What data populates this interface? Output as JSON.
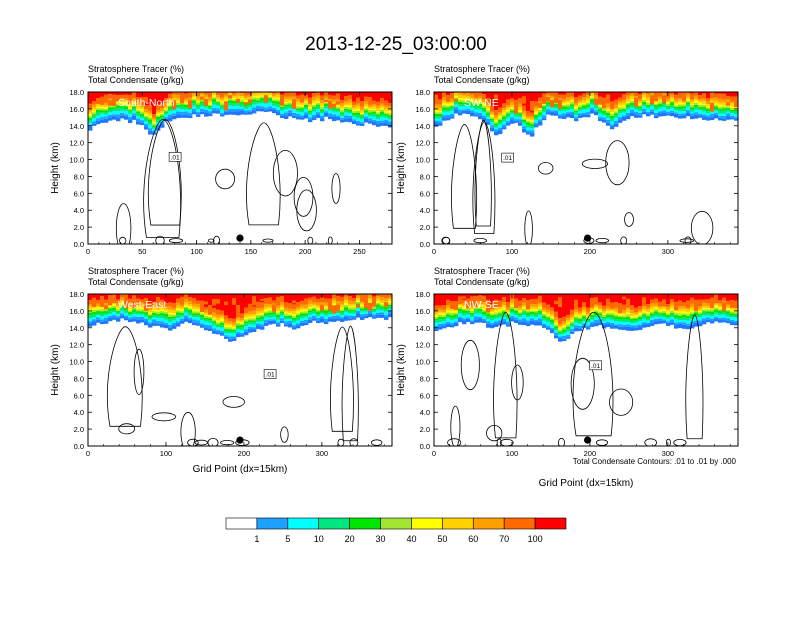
{
  "figure": {
    "title": "2013-12-25_03:00:00",
    "contour_note": "Total Condensate Contours: .01 to .01 by .000",
    "xlabel": "Grid Point (dx=15km)",
    "ylabel": "Height (km)",
    "field_label": "Stratosphere Tracer",
    "field_units": "(%)",
    "contour_label": "Total Condensate",
    "contour_units": "(g/kg)",
    "contour_tag": ".01"
  },
  "colorbar": {
    "labels": [
      "1",
      "5",
      "10",
      "20",
      "30",
      "40",
      "50",
      "60",
      "70",
      "100"
    ],
    "colors": [
      "#ffffff",
      "#1e78ff",
      "#1ea0ff",
      "#00ffff",
      "#00e680",
      "#00e600",
      "#a0e632",
      "#ffff00",
      "#ffd200",
      "#ffa000",
      "#ff6a00",
      "#ff0000"
    ]
  },
  "chart_data": [
    {
      "type": "heatmap",
      "panel": "South-North",
      "xlim": [
        0,
        280
      ],
      "ylim": [
        0,
        18
      ],
      "xticks": [
        0,
        50,
        100,
        150,
        200,
        250
      ],
      "yticks": [
        0,
        2,
        4,
        6,
        8,
        10,
        12,
        14,
        16,
        18
      ],
      "marker_x": 140,
      "tracer_base_km": [
        13.6,
        14.2,
        14.8,
        14.4,
        13.0,
        14.5,
        15.0,
        15.2,
        15.4,
        15.1,
        15.3,
        15.6,
        15.2,
        14.8,
        14.6,
        14.9,
        14.4,
        14.2,
        14.1,
        14.0
      ]
    },
    {
      "type": "heatmap",
      "panel": "SW-NE",
      "xlim": [
        0,
        390
      ],
      "ylim": [
        0,
        18
      ],
      "xticks": [
        0,
        100,
        200,
        300
      ],
      "yticks": [
        0,
        2,
        4,
        6,
        8,
        10,
        12,
        14,
        16,
        18
      ],
      "marker_x": 197,
      "tracer_base_km": [
        13.8,
        15.0,
        15.6,
        14.8,
        12.8,
        14.6,
        12.6,
        15.2,
        15.0,
        14.6,
        15.3,
        13.6,
        14.8,
        15.2,
        15.1,
        15.0,
        14.9,
        14.8,
        14.7,
        14.6
      ]
    },
    {
      "type": "heatmap",
      "panel": "West-East",
      "xlim": [
        0,
        390
      ],
      "ylim": [
        0,
        18
      ],
      "xticks": [
        0,
        100,
        200,
        300
      ],
      "yticks": [
        0,
        2,
        4,
        6,
        8,
        10,
        12,
        14,
        16,
        18
      ],
      "marker_x": 195,
      "tracer_base_km": [
        14.0,
        14.6,
        15.0,
        14.8,
        14.2,
        13.8,
        14.6,
        14.0,
        13.4,
        12.4,
        13.2,
        14.0,
        14.4,
        13.8,
        14.8,
        14.6,
        14.9,
        15.0,
        15.1,
        15.0
      ]
    },
    {
      "type": "heatmap",
      "panel": "NW-SE",
      "xlim": [
        0,
        390
      ],
      "ylim": [
        0,
        18
      ],
      "xticks": [
        0,
        100,
        200,
        300
      ],
      "yticks": [
        0,
        2,
        4,
        6,
        8,
        10,
        12,
        14,
        16,
        18
      ],
      "marker_x": 197,
      "tracer_base_km": [
        13.8,
        14.2,
        14.6,
        14.4,
        14.0,
        14.6,
        14.2,
        14.0,
        12.2,
        13.6,
        14.2,
        14.0,
        13.6,
        13.8,
        14.4,
        14.2,
        13.8,
        14.6,
        14.8,
        14.4
      ]
    }
  ]
}
